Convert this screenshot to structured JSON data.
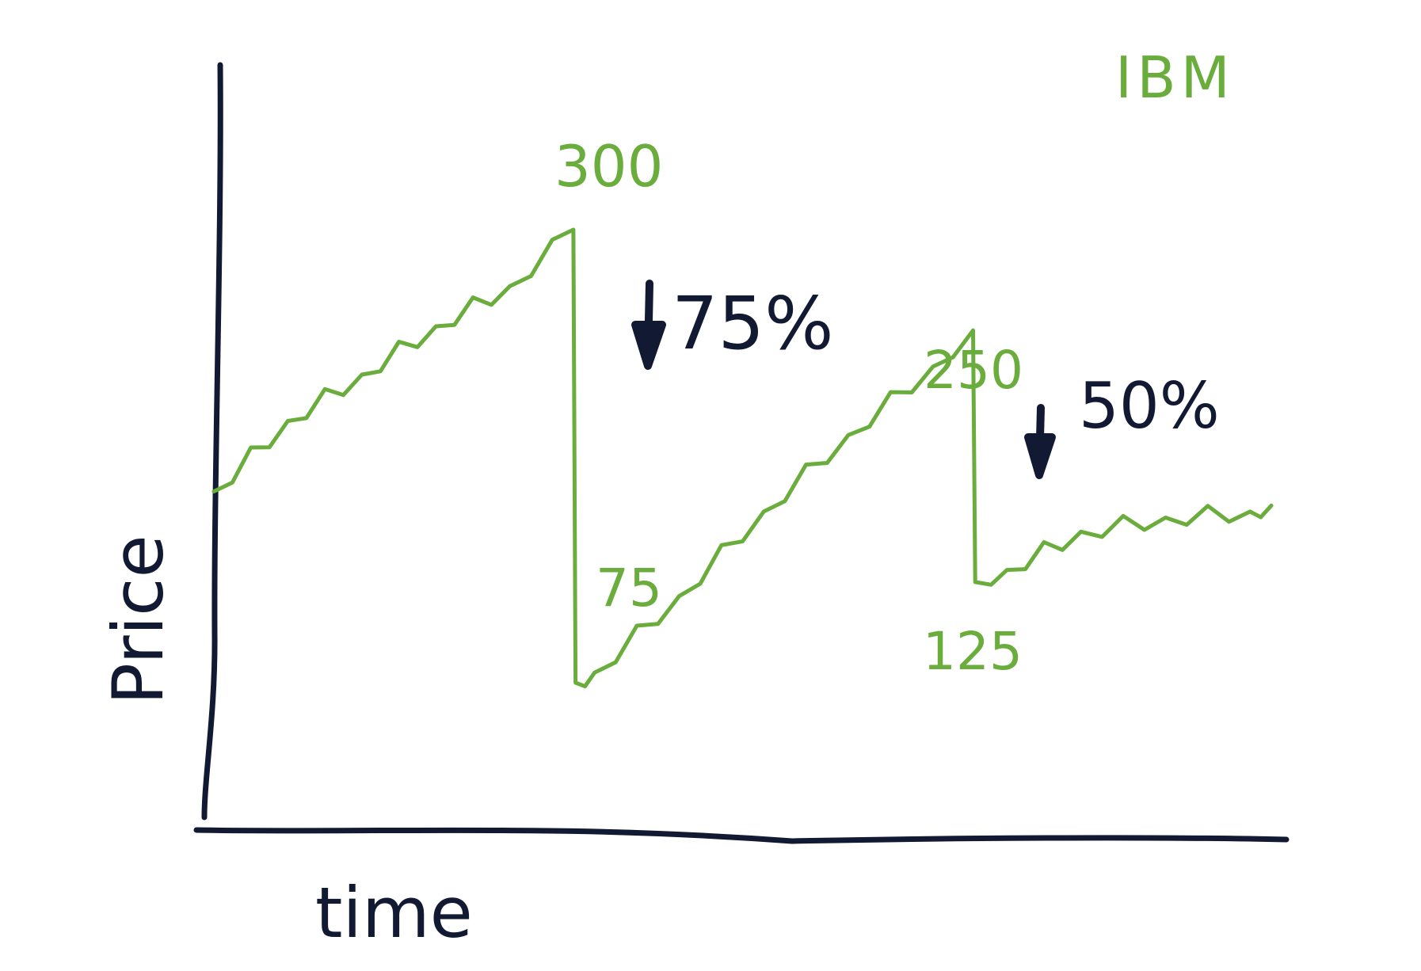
{
  "chart_data": {
    "type": "line",
    "title": "IBM",
    "xlabel": "time",
    "ylabel": "Price",
    "grid": false,
    "legend": "none",
    "series": [
      {
        "name": "IBM",
        "color": "#6aad3d",
        "points": [
          {
            "x": 0,
            "y": 170
          },
          {
            "x": 7,
            "y": 205
          },
          {
            "x": 14,
            "y": 228
          },
          {
            "x": 21,
            "y": 252
          },
          {
            "x": 28,
            "y": 272
          },
          {
            "x": 34,
            "y": 300
          },
          {
            "x": 34.2,
            "y": 75
          },
          {
            "x": 36,
            "y": 80
          },
          {
            "x": 44,
            "y": 118
          },
          {
            "x": 52,
            "y": 160
          },
          {
            "x": 60,
            "y": 198
          },
          {
            "x": 68,
            "y": 232
          },
          {
            "x": 71.8,
            "y": 250
          },
          {
            "x": 72,
            "y": 125
          },
          {
            "x": 75,
            "y": 131
          },
          {
            "x": 82,
            "y": 150
          },
          {
            "x": 90,
            "y": 157
          },
          {
            "x": 98,
            "y": 160
          },
          {
            "x": 100,
            "y": 163
          }
        ]
      }
    ],
    "point_labels": [
      {
        "text": "300",
        "x": 34,
        "y": 300,
        "position": "above"
      },
      {
        "text": "75",
        "x": 36,
        "y": 75,
        "position": "right"
      },
      {
        "text": "250",
        "x": 71.8,
        "y": 250,
        "position": "above"
      },
      {
        "text": "125",
        "x": 72,
        "y": 125,
        "position": "below"
      }
    ],
    "annotations": [
      {
        "text": "75%",
        "direction": "down",
        "x": 40,
        "y": 240,
        "color": "#121a33"
      },
      {
        "text": "50%",
        "direction": "down",
        "x": 80,
        "y": 212,
        "color": "#121a33"
      }
    ],
    "colors": {
      "axis": "#121a33",
      "series": "#6aad3d",
      "annotation": "#121a33"
    }
  }
}
